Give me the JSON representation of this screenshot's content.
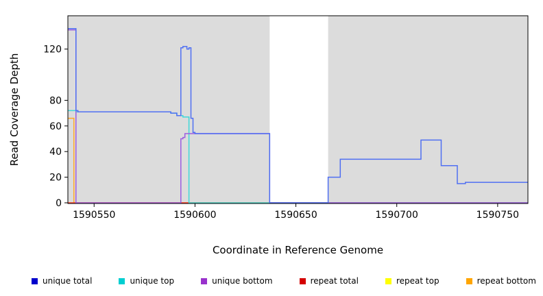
{
  "chart_data": {
    "type": "line",
    "title": "",
    "xlabel": "Coordinate in Reference Genome",
    "ylabel": "Read Coverage Depth",
    "xlim": [
      1590537,
      1590765
    ],
    "ylim": [
      0,
      146
    ],
    "x_ticks": [
      1590550,
      1590600,
      1590650,
      1590700,
      1590750
    ],
    "y_ticks": [
      0,
      20,
      40,
      60,
      80,
      120
    ],
    "grid": false,
    "plot_background": "#ffffff",
    "shaded_band_color": "#dcdcdc",
    "background_bands": [
      {
        "x1": 1590537,
        "x2": 1590637
      },
      {
        "x1": 1590666,
        "x2": 1590765
      }
    ],
    "series": [
      {
        "name": "repeat top",
        "color": "#ffff33",
        "points": [
          [
            1590537,
            0
          ],
          [
            1590765,
            0
          ]
        ]
      },
      {
        "name": "repeat bottom",
        "color": "#ffa826",
        "points": [
          [
            1590537,
            66
          ],
          [
            1590540,
            66
          ],
          [
            1590540,
            0
          ],
          [
            1590765,
            0
          ]
        ]
      },
      {
        "name": "repeat total",
        "color": "#f23b3b",
        "points": [
          [
            1590537,
            0
          ],
          [
            1590765,
            0
          ]
        ]
      },
      {
        "name": "unique top",
        "color": "#3fd8d8",
        "points": [
          [
            1590537,
            72
          ],
          [
            1590541,
            72
          ],
          [
            1590541,
            71
          ],
          [
            1590588,
            71
          ],
          [
            1590588,
            70
          ],
          [
            1590591,
            70
          ],
          [
            1590591,
            68
          ],
          [
            1590594,
            68
          ],
          [
            1590594,
            67
          ],
          [
            1590597,
            67
          ],
          [
            1590597,
            0
          ],
          [
            1590765,
            0
          ]
        ]
      },
      {
        "name": "unique bottom",
        "color": "#9b5ce0",
        "points": [
          [
            1590537,
            135
          ],
          [
            1590541,
            135
          ],
          [
            1590541,
            0
          ],
          [
            1590593,
            0
          ],
          [
            1590593,
            50
          ],
          [
            1590594,
            50
          ],
          [
            1590594,
            51
          ],
          [
            1590595,
            51
          ],
          [
            1590595,
            54
          ],
          [
            1590637,
            54
          ],
          [
            1590637,
            0
          ],
          [
            1590765,
            0
          ]
        ]
      },
      {
        "name": "unique total",
        "color": "#4f6ff2",
        "points": [
          [
            1590537,
            136
          ],
          [
            1590541,
            136
          ],
          [
            1590541,
            72
          ],
          [
            1590542,
            72
          ],
          [
            1590542,
            71
          ],
          [
            1590588,
            71
          ],
          [
            1590588,
            70
          ],
          [
            1590591,
            70
          ],
          [
            1590591,
            68
          ],
          [
            1590593,
            68
          ],
          [
            1590593,
            121
          ],
          [
            1590594,
            121
          ],
          [
            1590594,
            122
          ],
          [
            1590596,
            122
          ],
          [
            1590596,
            120
          ],
          [
            1590597,
            120
          ],
          [
            1590597,
            121
          ],
          [
            1590598,
            121
          ],
          [
            1590598,
            66
          ],
          [
            1590599,
            66
          ],
          [
            1590599,
            55
          ],
          [
            1590600,
            55
          ],
          [
            1590600,
            54
          ],
          [
            1590637,
            54
          ],
          [
            1590637,
            0
          ],
          [
            1590666,
            0
          ],
          [
            1590666,
            20
          ],
          [
            1590672,
            20
          ],
          [
            1590672,
            34
          ],
          [
            1590712,
            34
          ],
          [
            1590712,
            49
          ],
          [
            1590722,
            49
          ],
          [
            1590722,
            29
          ],
          [
            1590730,
            29
          ],
          [
            1590730,
            15
          ],
          [
            1590734,
            15
          ],
          [
            1590734,
            16
          ],
          [
            1590765,
            16
          ]
        ]
      }
    ]
  },
  "legend": {
    "items": [
      {
        "label": "unique total",
        "color": "#0000cc"
      },
      {
        "label": "unique top",
        "color": "#00ced1"
      },
      {
        "label": "unique bottom",
        "color": "#9932cc"
      },
      {
        "label": "repeat total",
        "color": "#d40000"
      },
      {
        "label": "repeat top",
        "color": "#ffff00"
      },
      {
        "label": "repeat bottom",
        "color": "#ffa500"
      }
    ]
  }
}
